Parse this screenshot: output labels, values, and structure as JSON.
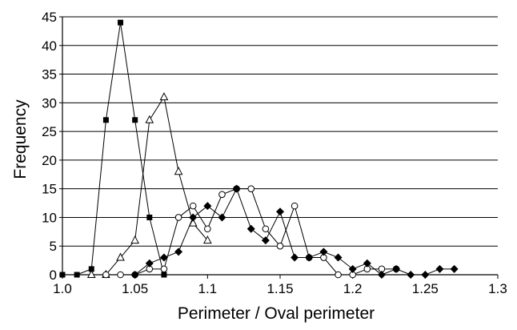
{
  "chart_data": {
    "type": "line",
    "title": "",
    "xlabel": "Perimeter / Oval perimeter",
    "ylabel": "Frequency",
    "xlim": [
      1.0,
      1.3
    ],
    "ylim": [
      0,
      45
    ],
    "x_ticks": [
      1.0,
      1.05,
      1.1,
      1.15,
      1.2,
      1.25,
      1.3
    ],
    "x_tick_labels": [
      "1.0",
      "1.05",
      "1.1",
      "1.15",
      "1.2",
      "1.25",
      "1.3"
    ],
    "y_ticks": [
      0,
      5,
      10,
      15,
      20,
      25,
      30,
      35,
      40,
      45
    ],
    "y_tick_labels": [
      "0",
      "5",
      "10",
      "15",
      "20",
      "25",
      "30",
      "35",
      "40",
      "45"
    ],
    "grid": "horizontal",
    "legend": "none",
    "series": [
      {
        "marker": "filled-square",
        "x": [
          1.0,
          1.01,
          1.02,
          1.03,
          1.04,
          1.05,
          1.06,
          1.07
        ],
        "y": [
          0,
          0,
          1,
          27,
          44,
          27,
          10,
          0
        ]
      },
      {
        "marker": "open-triangle",
        "x": [
          1.02,
          1.03,
          1.04,
          1.05,
          1.06,
          1.07,
          1.08,
          1.09,
          1.1
        ],
        "y": [
          0,
          0,
          3,
          6,
          27,
          31,
          18,
          9,
          6
        ]
      },
      {
        "marker": "open-circle",
        "x": [
          1.03,
          1.04,
          1.05,
          1.06,
          1.07,
          1.08,
          1.09,
          1.1,
          1.11,
          1.12,
          1.13,
          1.14,
          1.15,
          1.16,
          1.17,
          1.18,
          1.19,
          1.2,
          1.21,
          1.22,
          1.23
        ],
        "y": [
          0,
          0,
          0,
          1,
          1,
          10,
          12,
          8,
          14,
          15,
          15,
          8,
          5,
          12,
          3,
          3,
          0,
          0,
          1,
          1,
          1
        ]
      },
      {
        "marker": "filled-diamond",
        "x": [
          1.05,
          1.06,
          1.07,
          1.08,
          1.09,
          1.1,
          1.11,
          1.12,
          1.13,
          1.14,
          1.15,
          1.16,
          1.17,
          1.18,
          1.19,
          1.2,
          1.21,
          1.22,
          1.23,
          1.24,
          1.25,
          1.26,
          1.27
        ],
        "y": [
          0,
          2,
          3,
          4,
          10,
          12,
          10,
          15,
          8,
          6,
          11,
          3,
          3,
          4,
          3,
          1,
          2,
          0,
          1,
          0,
          0,
          1,
          1
        ]
      }
    ]
  }
}
